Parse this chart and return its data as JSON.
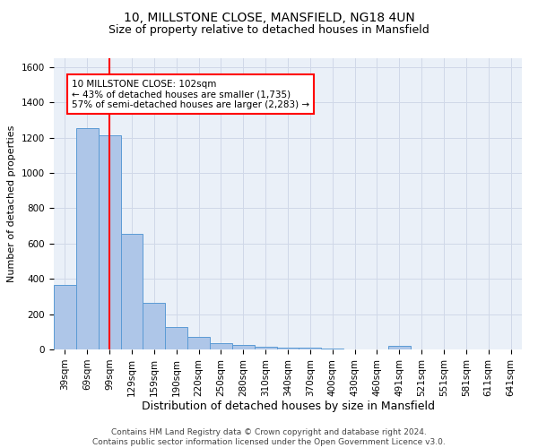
{
  "title1": "10, MILLSTONE CLOSE, MANSFIELD, NG18 4UN",
  "title2": "Size of property relative to detached houses in Mansfield",
  "xlabel": "Distribution of detached houses by size in Mansfield",
  "ylabel": "Number of detached properties",
  "footer1": "Contains HM Land Registry data © Crown copyright and database right 2024.",
  "footer2": "Contains public sector information licensed under the Open Government Licence v3.0.",
  "categories": [
    "39sqm",
    "69sqm",
    "99sqm",
    "129sqm",
    "159sqm",
    "190sqm",
    "220sqm",
    "250sqm",
    "280sqm",
    "310sqm",
    "340sqm",
    "370sqm",
    "400sqm",
    "430sqm",
    "460sqm",
    "491sqm",
    "521sqm",
    "551sqm",
    "581sqm",
    "611sqm",
    "641sqm"
  ],
  "values": [
    365,
    1255,
    1215,
    655,
    265,
    125,
    70,
    38,
    25,
    15,
    10,
    8,
    5,
    0,
    0,
    18,
    0,
    0,
    0,
    0,
    0
  ],
  "bar_color": "#aec6e8",
  "bar_edge_color": "#5b9bd5",
  "grid_color": "#d0d8e8",
  "bg_color": "#eaf0f8",
  "annotation_text_line1": "10 MILLSTONE CLOSE: 102sqm",
  "annotation_text_line2": "← 43% of detached houses are smaller (1,735)",
  "annotation_text_line3": "57% of semi-detached houses are larger (2,283) →",
  "red_line_bin": 2,
  "ylim": [
    0,
    1650
  ],
  "yticks": [
    0,
    200,
    400,
    600,
    800,
    1000,
    1200,
    1400,
    1600
  ],
  "title1_fontsize": 10,
  "title2_fontsize": 9,
  "xlabel_fontsize": 9,
  "ylabel_fontsize": 8,
  "tick_fontsize": 7.5,
  "footer_fontsize": 6.5,
  "ann_fontsize": 7.5
}
